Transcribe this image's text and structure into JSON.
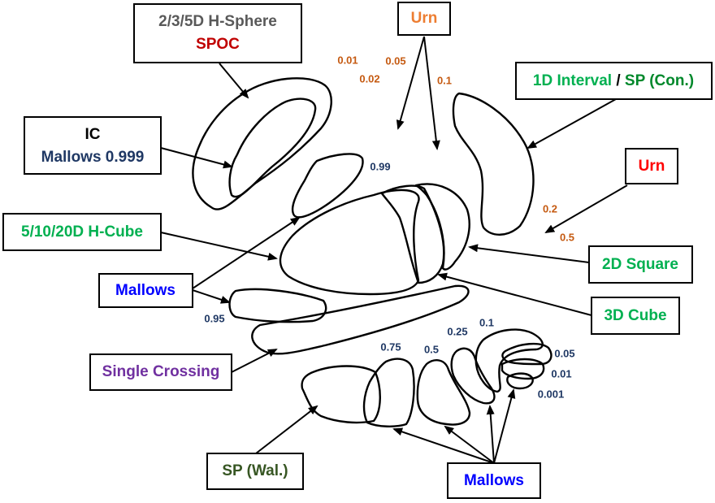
{
  "colors": {
    "gray": "#595959",
    "dark_red": "#C00000",
    "orange": "#ED7D31",
    "navy": "#1F3864",
    "green": "#00B050",
    "dark_green": "#00882B",
    "blue": "#0000FF",
    "purple": "#7030A0",
    "olive": "#375623",
    "red": "#FF0000",
    "param_orange": "#C55A11",
    "param_navy": "#1F3864"
  },
  "labels": {
    "hsphere_line1": "2/3/5D H-Sphere",
    "hsphere_line2": "SPOC",
    "urn_top": "Urn",
    "interval_part1": "1D Interval",
    "interval_sep": " / ",
    "interval_part2": "SP (Con.)",
    "ic_line1": "IC",
    "ic_line2": "Mallows 0.999",
    "urn_right": "Urn",
    "hcube": "5/10/20D H-Cube",
    "square": "2D Square",
    "mallows_left": "Mallows",
    "cube": "3D Cube",
    "single_crossing": "Single Crossing",
    "sp_wal": "SP (Wal.)",
    "mallows_bottom": "Mallows"
  },
  "params": {
    "urn_001": "0.01",
    "urn_002": "0.02",
    "urn_005": "0.05",
    "urn_01": "0.1",
    "urn_02": "0.2",
    "urn_05": "0.5",
    "mallows_099": "0.99",
    "mallows_095": "0.95",
    "mallows_075": "0.75",
    "mallows_05": "0.5",
    "mallows_025": "0.25",
    "mallows_01": "0.1",
    "mallows_005": "0.05",
    "mallows_001": "0.01",
    "mallows_0001": "0.001"
  }
}
